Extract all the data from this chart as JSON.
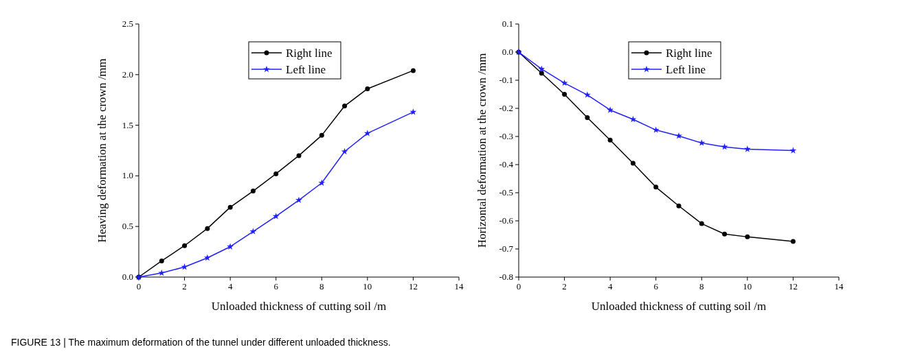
{
  "chart_data": [
    {
      "type": "line",
      "xlabel": "Unloaded thickness of  cutting soil /m",
      "ylabel": "Heaving deformation at the crown /mm",
      "x": [
        0,
        1,
        2,
        3,
        4,
        5,
        6,
        7,
        8,
        9,
        10,
        12
      ],
      "xlim": [
        0,
        14
      ],
      "xticks": [
        0,
        2,
        4,
        6,
        8,
        10,
        12,
        14
      ],
      "ylim": [
        0,
        2.5
      ],
      "yticks": [
        {
          "value": 0,
          "label": "0.0"
        },
        0.5,
        {
          "value": 1,
          "label": "1.0"
        },
        1.5,
        {
          "value": 2,
          "label": "2.0"
        },
        2.5
      ],
      "legend": "top",
      "grid": false,
      "series": [
        {
          "name": "Right line",
          "color": "#000000",
          "marker": "circle",
          "values": [
            0,
            0.16,
            0.31,
            0.48,
            0.69,
            0.85,
            1.02,
            1.2,
            1.4,
            1.69,
            1.86,
            2.04
          ]
        },
        {
          "name": "Left line",
          "color": "#1f1fff",
          "marker": "star",
          "values": [
            0,
            0.04,
            0.1,
            0.19,
            0.3,
            0.45,
            0.6,
            0.76,
            0.93,
            1.24,
            1.42,
            1.63
          ]
        }
      ],
      "annotations": [
        "FIGURE 13 | The maximum deformation of the tunnel under different unloaded thickness."
      ]
    },
    {
      "type": "line",
      "xlabel": "Unloaded thickness of  cutting soil /m",
      "ylabel": "Horizontal deformation at the crown /mm",
      "x": [
        0,
        1,
        2,
        3,
        4,
        5,
        6,
        7,
        8,
        9,
        10,
        12
      ],
      "xlim": [
        0,
        14
      ],
      "xticks": [
        0,
        2,
        4,
        6,
        8,
        10,
        12,
        14
      ],
      "ylim": [
        -0.8,
        0.1
      ],
      "yticks": [
        -0.8,
        -0.7,
        -0.6,
        -0.5,
        -0.4,
        -0.3,
        -0.2,
        -0.1,
        {
          "value": 0,
          "label": "0.0"
        },
        0.1
      ],
      "legend": "top",
      "grid": false,
      "series": [
        {
          "name": "Right line",
          "color": "#000000",
          "marker": "circle",
          "values": [
            0,
            -0.075,
            -0.15,
            -0.233,
            -0.313,
            -0.395,
            -0.48,
            -0.547,
            -0.61,
            -0.647,
            -0.657,
            -0.673
          ]
        },
        {
          "name": "Left line",
          "color": "#1f1fff",
          "marker": "star",
          "values": [
            0,
            -0.06,
            -0.11,
            -0.152,
            -0.206,
            -0.239,
            -0.277,
            -0.298,
            -0.323,
            -0.337,
            -0.345,
            -0.35
          ]
        }
      ]
    }
  ]
}
